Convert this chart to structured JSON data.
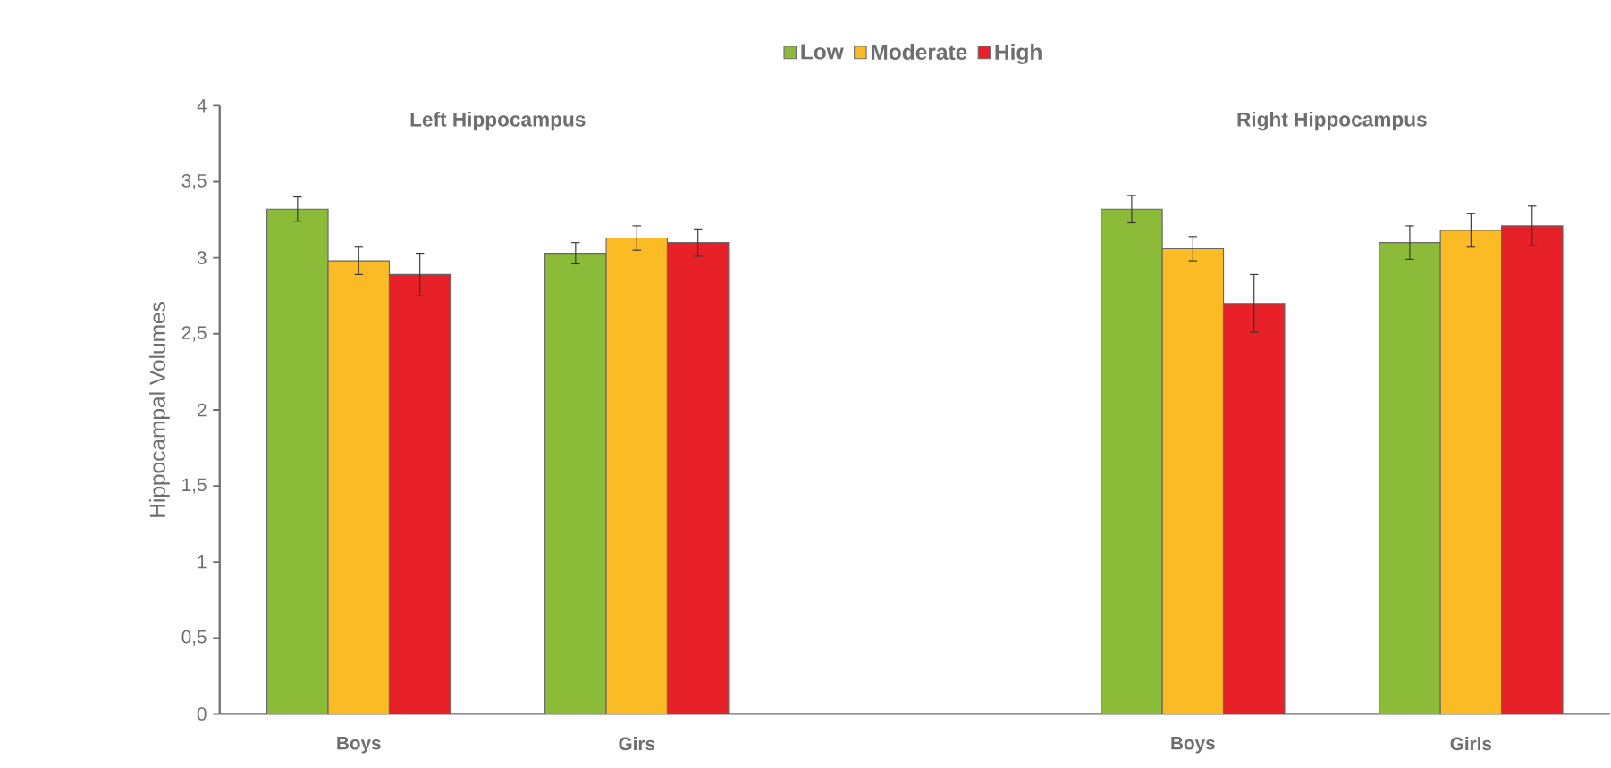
{
  "chart_data": {
    "type": "bar",
    "ylabel": "Hippocampal Volumes",
    "categories": [
      "Boys",
      "Girs",
      null,
      "Boys",
      "Girls"
    ],
    "annotations": [
      "Left Hippocampus",
      "Right Hippocampus"
    ],
    "series": [
      {
        "name": "Low",
        "color": "#8cbb3a",
        "values": [
          3.32,
          3.03,
          null,
          3.32,
          3.1
        ],
        "errors": [
          0.08,
          0.07,
          null,
          0.09,
          0.11
        ]
      },
      {
        "name": "Moderate",
        "color": "#fbbb25",
        "values": [
          2.98,
          3.13,
          null,
          3.06,
          3.18
        ],
        "errors": [
          0.09,
          0.08,
          null,
          0.08,
          0.11
        ]
      },
      {
        "name": "High",
        "color": "#e82027",
        "values": [
          2.89,
          3.1,
          null,
          2.7,
          3.21
        ],
        "errors": [
          0.14,
          0.09,
          null,
          0.19,
          0.13
        ]
      }
    ],
    "ylim": [
      0,
      4
    ],
    "yticks": [
      0,
      {
        "value": 0.5,
        "label": "0,5"
      },
      1,
      {
        "value": 1.5,
        "label": "1,5"
      },
      2,
      {
        "value": 2.5,
        "label": "2,5"
      },
      3,
      {
        "value": 3.5,
        "label": "3,5"
      },
      4
    ],
    "legend": "top"
  }
}
